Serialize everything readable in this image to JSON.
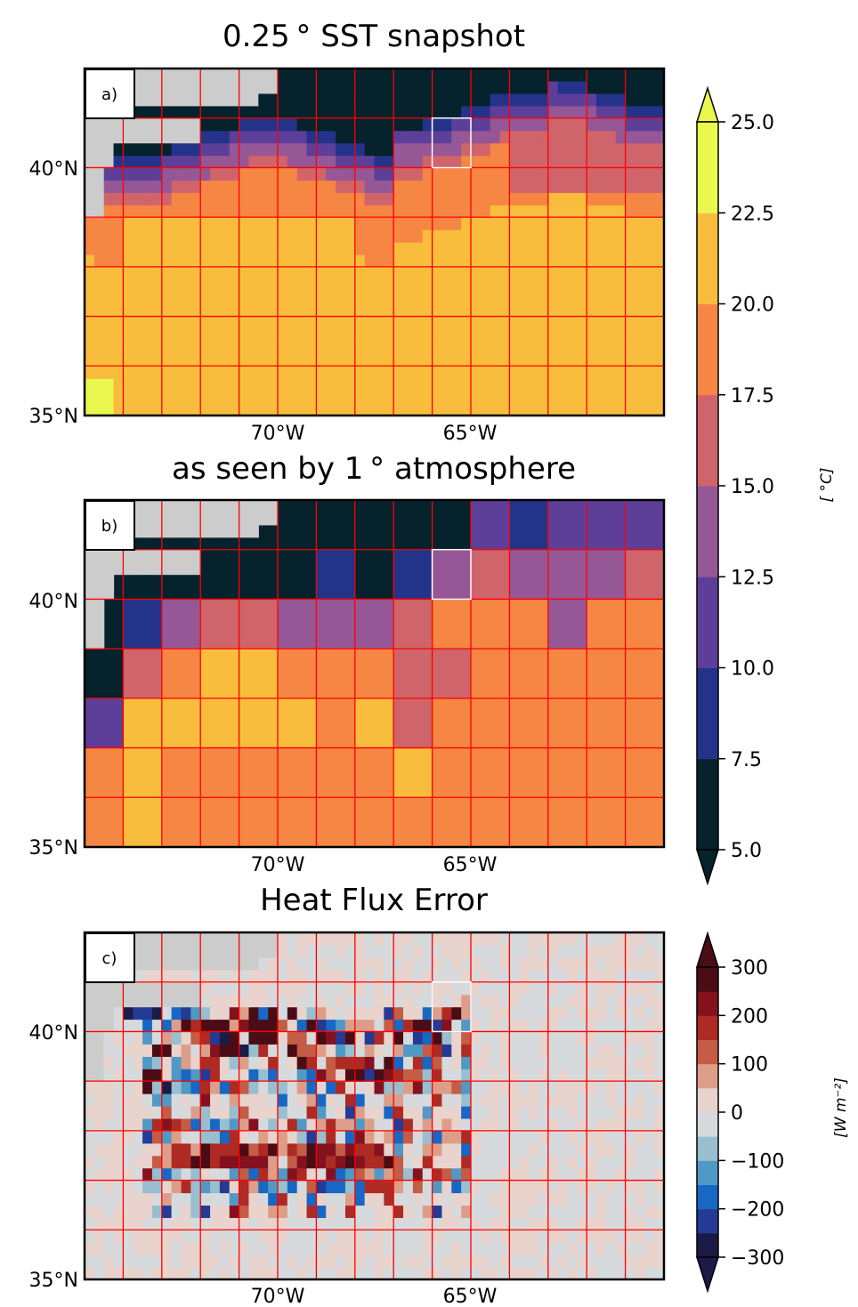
{
  "panels": [
    {
      "id": "a",
      "title": "0.25$^\\circ$ SST snapshot",
      "title_text": "0.25 °  SST snapshot",
      "label": "a)",
      "type": "heatmap",
      "resolution_deg": 0.25
    },
    {
      "id": "b",
      "title_text": "as seen by 1 °  atmosphere",
      "label": "b)",
      "type": "heatmap",
      "resolution_deg": 1.0
    },
    {
      "id": "c",
      "title_text": "Heat Flux Error",
      "label": "c)",
      "type": "heatmap",
      "resolution_deg": 0.25
    }
  ],
  "axes": {
    "y_ticks": [
      "40°N",
      "35°N"
    ],
    "x_ticks": [
      "70°W",
      "65°W"
    ],
    "lat_range": [
      35,
      42
    ],
    "lon_range": [
      -75,
      -60
    ]
  },
  "colorbars": [
    {
      "id": "sst",
      "label": "[$^\\circ C$]",
      "label_text": "[ °C]",
      "ticks": [
        "25.0",
        "22.5",
        "20.0",
        "17.5",
        "15.0",
        "12.5",
        "10.0",
        "7.5",
        "5.0"
      ],
      "levels": [
        5.0,
        7.5,
        10.0,
        12.5,
        15.0,
        17.5,
        20.0,
        22.5,
        25.0
      ],
      "colors": [
        "#05222d",
        "#23338a",
        "#5d3f9a",
        "#955796",
        "#cf646a",
        "#f68643",
        "#f8bd3c",
        "#e9f74f"
      ],
      "extend": "both"
    },
    {
      "id": "flux",
      "label_text": "[W m⁻²]",
      "ticks": [
        "300",
        "200",
        "100",
        "0",
        "−100",
        "−200",
        "−300"
      ],
      "levels": [
        -300,
        -250,
        -200,
        -150,
        -100,
        -50,
        0,
        50,
        100,
        150,
        200,
        250,
        300
      ],
      "colors": [
        "#1c1b47",
        "#253a95",
        "#1668c4",
        "#5099c5",
        "#97bfd0",
        "#d6dadd",
        "#e9d3cd",
        "#dd9e89",
        "#c45c46",
        "#ae2b24",
        "#85111f",
        "#4a0d16"
      ],
      "extend": "both"
    }
  ],
  "chart_data": [
    {
      "type": "heatmap",
      "panel": "a",
      "title": "0.25° SST snapshot",
      "units": "°C",
      "x_range_lon": [
        -75,
        -60
      ],
      "y_range_lat": [
        35,
        42
      ],
      "description_values": "Cold shelf water (<7.5 °C) north of ~40.5°N, Gulf Stream front near 39-40°N, warm water 17.5-22.5 °C south of front; warmest (>22.5 °C) in SW corner near 35.5°N 75°W.",
      "highlighted_box": {
        "lon": [
          -66,
          -65
        ],
        "lat": [
          40,
          41
        ]
      }
    },
    {
      "type": "heatmap",
      "panel": "b",
      "title": "as seen by 1° atmosphere",
      "units": "°C",
      "rows_lat_top_to_bottom": [
        "41-42",
        "40-41",
        "39-40",
        "38-39",
        "37-38",
        "36-37",
        "35-36"
      ],
      "cols_lon_left_to_right": [
        "-75",
        "-74",
        "-73",
        "-72",
        "-71",
        "-70",
        "-69",
        "-68",
        "-67",
        "-66",
        "-65",
        "-64",
        "-63",
        "-62",
        "-61"
      ],
      "values_bin_index_rows": [
        [
          0,
          0,
          0,
          0,
          0,
          0,
          0,
          0,
          0,
          0,
          2,
          1,
          2,
          2,
          2
        ],
        [
          0,
          0,
          0,
          0,
          0,
          0,
          1,
          0,
          1,
          3,
          4,
          3,
          3,
          3,
          4
        ],
        [
          0,
          1,
          3,
          4,
          4,
          3,
          3,
          3,
          4,
          5,
          5,
          5,
          3,
          5,
          5
        ],
        [
          0,
          4,
          5,
          6,
          6,
          5,
          5,
          5,
          4,
          4,
          5,
          5,
          5,
          5,
          5
        ],
        [
          2,
          6,
          6,
          6,
          6,
          6,
          5,
          6,
          4,
          5,
          5,
          5,
          5,
          5,
          5
        ],
        [
          5,
          6,
          5,
          5,
          5,
          5,
          5,
          5,
          6,
          5,
          5,
          5,
          5,
          5,
          5
        ],
        [
          5,
          6,
          5,
          5,
          5,
          5,
          5,
          5,
          5,
          5,
          5,
          5,
          5,
          5,
          5
        ]
      ],
      "highlighted_box": {
        "lon": [
          -66,
          -65
        ],
        "lat": [
          40,
          41
        ]
      }
    },
    {
      "type": "heatmap",
      "panel": "c",
      "title": "Heat Flux Error",
      "units": "W m-2",
      "description_values": "Mostly near-zero errors (±50 W m-2); strong positive errors (>200) and negative errors (<-200) concentrated along SST fronts at 1° grid-cell boundaries, especially along 40°N and 37.5°N between 73°W and 66°W.",
      "highlighted_box": {
        "lon": [
          -66,
          -65
        ],
        "lat": [
          40,
          41
        ]
      }
    }
  ]
}
